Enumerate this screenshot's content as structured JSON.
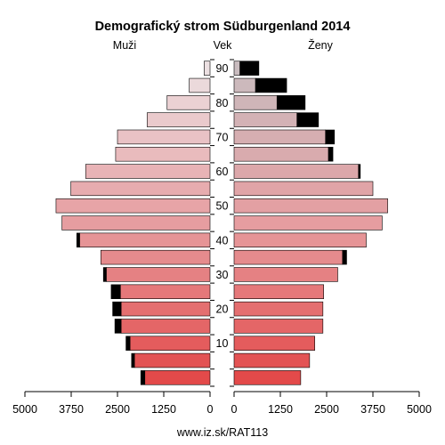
{
  "chart_data": {
    "type": "bar",
    "title": "Demografický strom Südburgenland 2014",
    "left_label": "Muži",
    "center_label": "Vek",
    "right_label": "Ženy",
    "source": "www.iz.sk/RAT113",
    "x_ticks_left": [
      "5000",
      "3750",
      "2500",
      "1250",
      "0"
    ],
    "x_ticks_right": [
      "0",
      "1250",
      "2500",
      "3750",
      "5000"
    ],
    "y_ticks": [
      "10",
      "20",
      "30",
      "40",
      "50",
      "60",
      "70",
      "80",
      "90"
    ],
    "xlim": [
      0,
      5000
    ],
    "age_groups": [
      "0-4",
      "5-9",
      "10-14",
      "15-19",
      "20-24",
      "25-29",
      "30-34",
      "35-39",
      "40-44",
      "45-49",
      "50-54",
      "55-59",
      "60-64",
      "65-69",
      "70-74",
      "75-79",
      "80-84",
      "85-89",
      "90+"
    ],
    "series": [
      {
        "name": "Muži",
        "base": [
          1760,
          2040,
          2160,
          2400,
          2400,
          2420,
          2800,
          2950,
          3520,
          4000,
          4160,
          3760,
          3360,
          2550,
          2500,
          1700,
          1160,
          560,
          160
        ],
        "excess": [
          110,
          80,
          110,
          170,
          230,
          250,
          80,
          0,
          80,
          0,
          0,
          0,
          0,
          0,
          0,
          0,
          0,
          0,
          0
        ]
      },
      {
        "name": "Ženy",
        "base": [
          1800,
          2040,
          2180,
          2400,
          2400,
          2420,
          2800,
          2930,
          3570,
          4000,
          4150,
          3750,
          3360,
          2550,
          2470,
          1700,
          1160,
          580,
          160
        ],
        "excess": [
          0,
          0,
          0,
          0,
          0,
          0,
          0,
          110,
          0,
          0,
          0,
          0,
          50,
          120,
          240,
          580,
          760,
          840,
          510
        ]
      }
    ],
    "colors": {
      "excess": "#000000",
      "outline": "#000000",
      "young": "#e34a4a",
      "middle": "#e69da0",
      "old_male": "#ece0e2",
      "old_female": "#c9bcbf"
    }
  }
}
